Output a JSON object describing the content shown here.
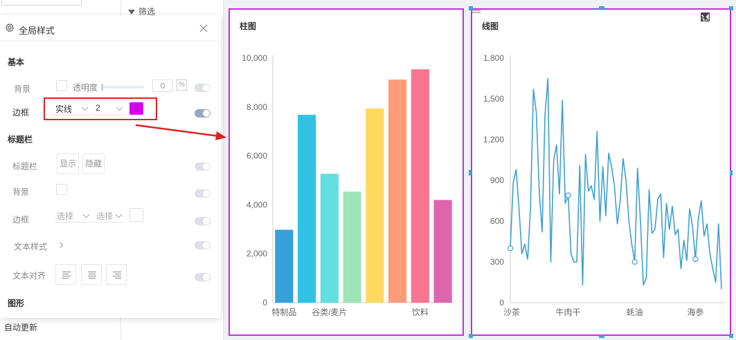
{
  "left_panel": {
    "auto_update": "自动更新"
  },
  "mid_panel": {
    "filter_label": "筛选"
  },
  "global_style": {
    "title": "全局样式",
    "sections": {
      "basic": "基本",
      "title_bar": "标题栏",
      "graphic": "图形"
    },
    "basic": {
      "background_label": "背景",
      "opacity_label": "透明度",
      "opacity_value": "0",
      "opacity_unit": "%",
      "border_label": "边框",
      "border_style": "实线",
      "border_width": "2",
      "border_color": "#d400e8"
    },
    "title_bar": {
      "title_bar_label": "标题栏",
      "show_label": "显示",
      "hide_label": "隐藏",
      "background_label": "背景",
      "border_label": "边框",
      "border_style_placeholder": "选择",
      "border_width_placeholder": "选择",
      "text_style_label": "文本样式",
      "text_align_label": "文本对齐"
    }
  },
  "bar_chart_card": {
    "chart_data": {
      "type": "bar",
      "title": "柱图",
      "categories": [
        "特制品",
        "",
        "谷类/麦片",
        "",
        "",
        "",
        "饮料",
        ""
      ],
      "tick_labels_x": [
        "特制品",
        "谷类/麦片",
        "饮料"
      ],
      "values": [
        2980,
        7680,
        5270,
        4540,
        7940,
        9120,
        9540,
        4200
      ],
      "colors": [
        "#36a0d8",
        "#30c3e6",
        "#62dfe0",
        "#9fe3b8",
        "#fed962",
        "#fe9c79",
        "#fb7591",
        "#e063ae"
      ],
      "ylim": [
        0,
        10000
      ],
      "yticks": [
        0,
        2000,
        4000,
        6000,
        8000,
        10000
      ],
      "ytick_labels": [
        "0",
        "2,000",
        "4,000",
        "6,000",
        "8,000",
        "10,000"
      ],
      "xlabel": "",
      "ylabel": ""
    }
  },
  "line_chart_card": {
    "chart_data": {
      "type": "line",
      "title": "线图",
      "color": "#3d9fd2",
      "ylim": [
        0,
        1800
      ],
      "yticks": [
        0,
        300,
        600,
        900,
        1200,
        1500,
        1800
      ],
      "ytick_labels": [
        "0",
        "300",
        "600",
        "900",
        "1,200",
        "1,500",
        "1,800"
      ],
      "tick_labels_x": [
        "沙茶",
        "牛肉干",
        "蚝油",
        "海参"
      ],
      "values": [
        400,
        880,
        980,
        700,
        360,
        430,
        320,
        700,
        1570,
        1400,
        820,
        520,
        1380,
        1650,
        300,
        1050,
        1160,
        800,
        1490,
        730,
        790,
        360,
        300,
        300,
        1010,
        130,
        1090,
        820,
        860,
        760,
        1260,
        600,
        1000,
        640,
        1100,
        1000,
        860,
        580,
        750,
        1060,
        900,
        600,
        430,
        300,
        990,
        600,
        130,
        180,
        830,
        510,
        540,
        760,
        800,
        330,
        730,
        540,
        710,
        500,
        540,
        250,
        460,
        310,
        690,
        560,
        320,
        620,
        750,
        490,
        580,
        360,
        250,
        150,
        580,
        100
      ],
      "markers": [
        0,
        20,
        43,
        64
      ],
      "xlabel": "",
      "ylabel": ""
    }
  },
  "toolbar_icons": [
    "more-vertical-icon",
    "filter-icon",
    "maximize-icon",
    "close-icon"
  ]
}
